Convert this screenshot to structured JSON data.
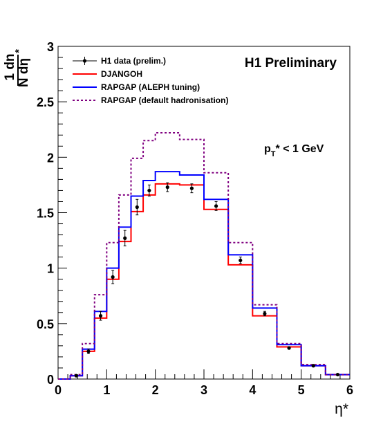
{
  "chart_data": {
    "type": "line",
    "title": "H1 Preliminary",
    "cut_label": {
      "main": "p",
      "sub": "T",
      "rest": "* < 1 GeV"
    },
    "xlabel": "η*",
    "ylabel": {
      "numerator": "1 dn",
      "denominator": "N dη",
      "sup": "*"
    },
    "xlim": [
      0,
      6
    ],
    "ylim": [
      0,
      3
    ],
    "x_major_ticks": [
      0,
      1,
      2,
      3,
      4,
      5,
      6
    ],
    "x_tick_labels": [
      "0",
      "1",
      "2",
      "3",
      "4",
      "5",
      "6"
    ],
    "y_major_ticks": [
      0,
      0.5,
      1,
      1.5,
      2,
      2.5,
      3
    ],
    "y_tick_labels": [
      "0",
      "0.5",
      "1",
      "1.5",
      "2",
      "2.5",
      "3"
    ],
    "bin_edges": [
      0,
      0.25,
      0.5,
      0.75,
      1.0,
      1.25,
      1.5,
      1.75,
      2.0,
      2.5,
      3.0,
      3.5,
      4.0,
      4.5,
      5.0,
      5.5,
      6.0
    ],
    "series": [
      {
        "name": "H1 data (prelim.)",
        "kind": "points",
        "color": "#000000",
        "x": [
          0.375,
          0.625,
          0.875,
          1.125,
          1.375,
          1.625,
          1.875,
          2.25,
          2.75,
          3.25,
          3.75,
          4.25,
          4.75,
          5.25,
          5.75
        ],
        "y": [
          0.03,
          0.25,
          0.57,
          0.92,
          1.27,
          1.55,
          1.7,
          1.73,
          1.72,
          1.56,
          1.07,
          0.59,
          0.28,
          0.12,
          0.04
        ],
        "err": [
          0.01,
          0.02,
          0.04,
          0.06,
          0.07,
          0.07,
          0.05,
          0.04,
          0.04,
          0.04,
          0.03,
          0.02,
          0.01,
          0.01,
          0.005
        ]
      },
      {
        "name": "DJANGOH",
        "kind": "hist",
        "color": "#ff0000",
        "dashed": false,
        "values": [
          0.0,
          0.03,
          0.25,
          0.55,
          0.9,
          1.24,
          1.51,
          1.66,
          1.76,
          1.75,
          1.53,
          1.03,
          0.57,
          0.29,
          0.12,
          0.04
        ]
      },
      {
        "name": "RAPGAP (ALEPH tuning)",
        "kind": "hist",
        "color": "#0000ff",
        "dashed": false,
        "values": [
          0.0,
          0.03,
          0.27,
          0.61,
          1.0,
          1.37,
          1.65,
          1.79,
          1.87,
          1.84,
          1.62,
          1.12,
          0.64,
          0.31,
          0.12,
          0.04
        ]
      },
      {
        "name": "RAPGAP (default hadronisation)",
        "kind": "hist",
        "color": "#800080",
        "dashed": true,
        "values": [
          0.0,
          0.04,
          0.32,
          0.76,
          1.23,
          1.66,
          1.99,
          2.15,
          2.22,
          2.16,
          1.86,
          1.23,
          0.67,
          0.32,
          0.13,
          0.04
        ]
      }
    ],
    "legend_position": "top-left",
    "grid": false
  }
}
